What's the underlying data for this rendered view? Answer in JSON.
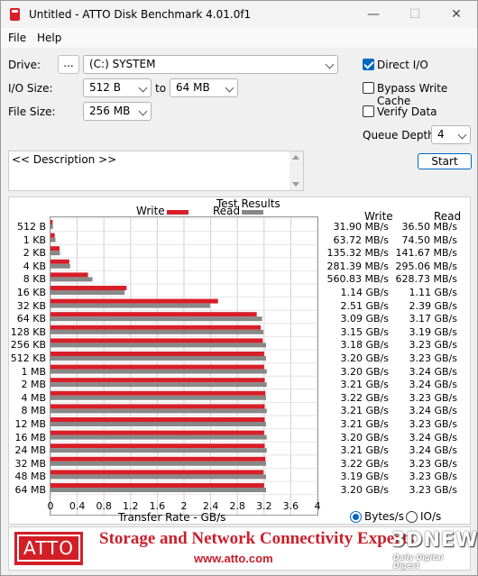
{
  "window": {
    "title": "Untitled - ATTO Disk Benchmark 4.01.0f1",
    "controls": {
      "minimize": "—",
      "maximize": "☐",
      "close": "✕"
    }
  },
  "menu": {
    "file": "File",
    "help": "Help"
  },
  "settings": {
    "drive_label": "Drive:",
    "browse_label": "...",
    "drive_value": "(C:) SYSTEM",
    "io_size_label": "I/O Size:",
    "io_from": "512 B",
    "io_to_label": "to",
    "io_to": "64 MB",
    "file_size_label": "File Size:",
    "file_size": "256 MB",
    "direct_io": "Direct I/O",
    "direct_io_checked": true,
    "bypass_cache": "Bypass Write Cache",
    "bypass_cache_checked": false,
    "verify_data": "Verify Data",
    "verify_data_checked": false,
    "queue_depth_label": "Queue Depth:",
    "queue_depth": "4",
    "start_label": "Start"
  },
  "description": {
    "text": "<< Description >>"
  },
  "results": {
    "title": "Test Results",
    "legend_write": "Write",
    "legend_read": "Read",
    "col_write": "Write",
    "col_read": "Read",
    "xlabel": "Transfer Rate - GB/s",
    "units_bytes": "Bytes/s",
    "units_io": "IO/s",
    "units_selected": "bytes"
  },
  "chart_data": {
    "type": "bar",
    "orientation": "horizontal",
    "title": "Test Results",
    "xlabel": "Transfer Rate - GB/s",
    "xlim": [
      0,
      4
    ],
    "xticks": [
      "0",
      "0.4",
      "0.8",
      "1.2",
      "1.6",
      "2",
      "2.4",
      "2.8",
      "3.2",
      "3.6",
      "4"
    ],
    "grid": true,
    "legend": "top",
    "colors": {
      "write": "#d81e28",
      "read": "#888888"
    },
    "categories": [
      "512 B",
      "1 KB",
      "2 KB",
      "4 KB",
      "8 KB",
      "16 KB",
      "32 KB",
      "64 KB",
      "128 KB",
      "256 KB",
      "512 KB",
      "1 MB",
      "2 MB",
      "4 MB",
      "8 MB",
      "12 MB",
      "16 MB",
      "24 MB",
      "32 MB",
      "48 MB",
      "64 MB"
    ],
    "series": [
      {
        "name": "Write",
        "values": [
          0.0319,
          0.0637,
          0.1353,
          0.2814,
          0.5608,
          1.14,
          2.51,
          3.09,
          3.15,
          3.18,
          3.2,
          3.2,
          3.21,
          3.22,
          3.21,
          3.21,
          3.2,
          3.21,
          3.22,
          3.19,
          3.2
        ]
      },
      {
        "name": "Read",
        "values": [
          0.0365,
          0.0745,
          0.1417,
          0.2951,
          0.6287,
          1.11,
          2.39,
          3.17,
          3.19,
          3.23,
          3.23,
          3.24,
          3.24,
          3.23,
          3.24,
          3.23,
          3.24,
          3.24,
          3.23,
          3.23,
          3.23
        ]
      }
    ],
    "write_labels": [
      "31.90 MB/s",
      "63.72 MB/s",
      "135.32 MB/s",
      "281.39 MB/s",
      "560.83 MB/s",
      "1.14 GB/s",
      "2.51 GB/s",
      "3.09 GB/s",
      "3.15 GB/s",
      "3.18 GB/s",
      "3.20 GB/s",
      "3.20 GB/s",
      "3.21 GB/s",
      "3.22 GB/s",
      "3.21 GB/s",
      "3.21 GB/s",
      "3.20 GB/s",
      "3.21 GB/s",
      "3.22 GB/s",
      "3.19 GB/s",
      "3.20 GB/s"
    ],
    "read_labels": [
      "36.50 MB/s",
      "74.50 MB/s",
      "141.67 MB/s",
      "295.06 MB/s",
      "628.73 MB/s",
      "1.11 GB/s",
      "2.39 GB/s",
      "3.17 GB/s",
      "3.19 GB/s",
      "3.23 GB/s",
      "3.23 GB/s",
      "3.24 GB/s",
      "3.24 GB/s",
      "3.23 GB/s",
      "3.24 GB/s",
      "3.23 GB/s",
      "3.24 GB/s",
      "3.24 GB/s",
      "3.23 GB/s",
      "3.23 GB/s",
      "3.23 GB/s"
    ]
  },
  "banner": {
    "logo": "ATTO",
    "tagline": "Storage and Network Connectivity Experts",
    "url": "www.atto.com",
    "watermark": "3DNEWS",
    "watermark_sub": "Daily Digital Digest"
  }
}
